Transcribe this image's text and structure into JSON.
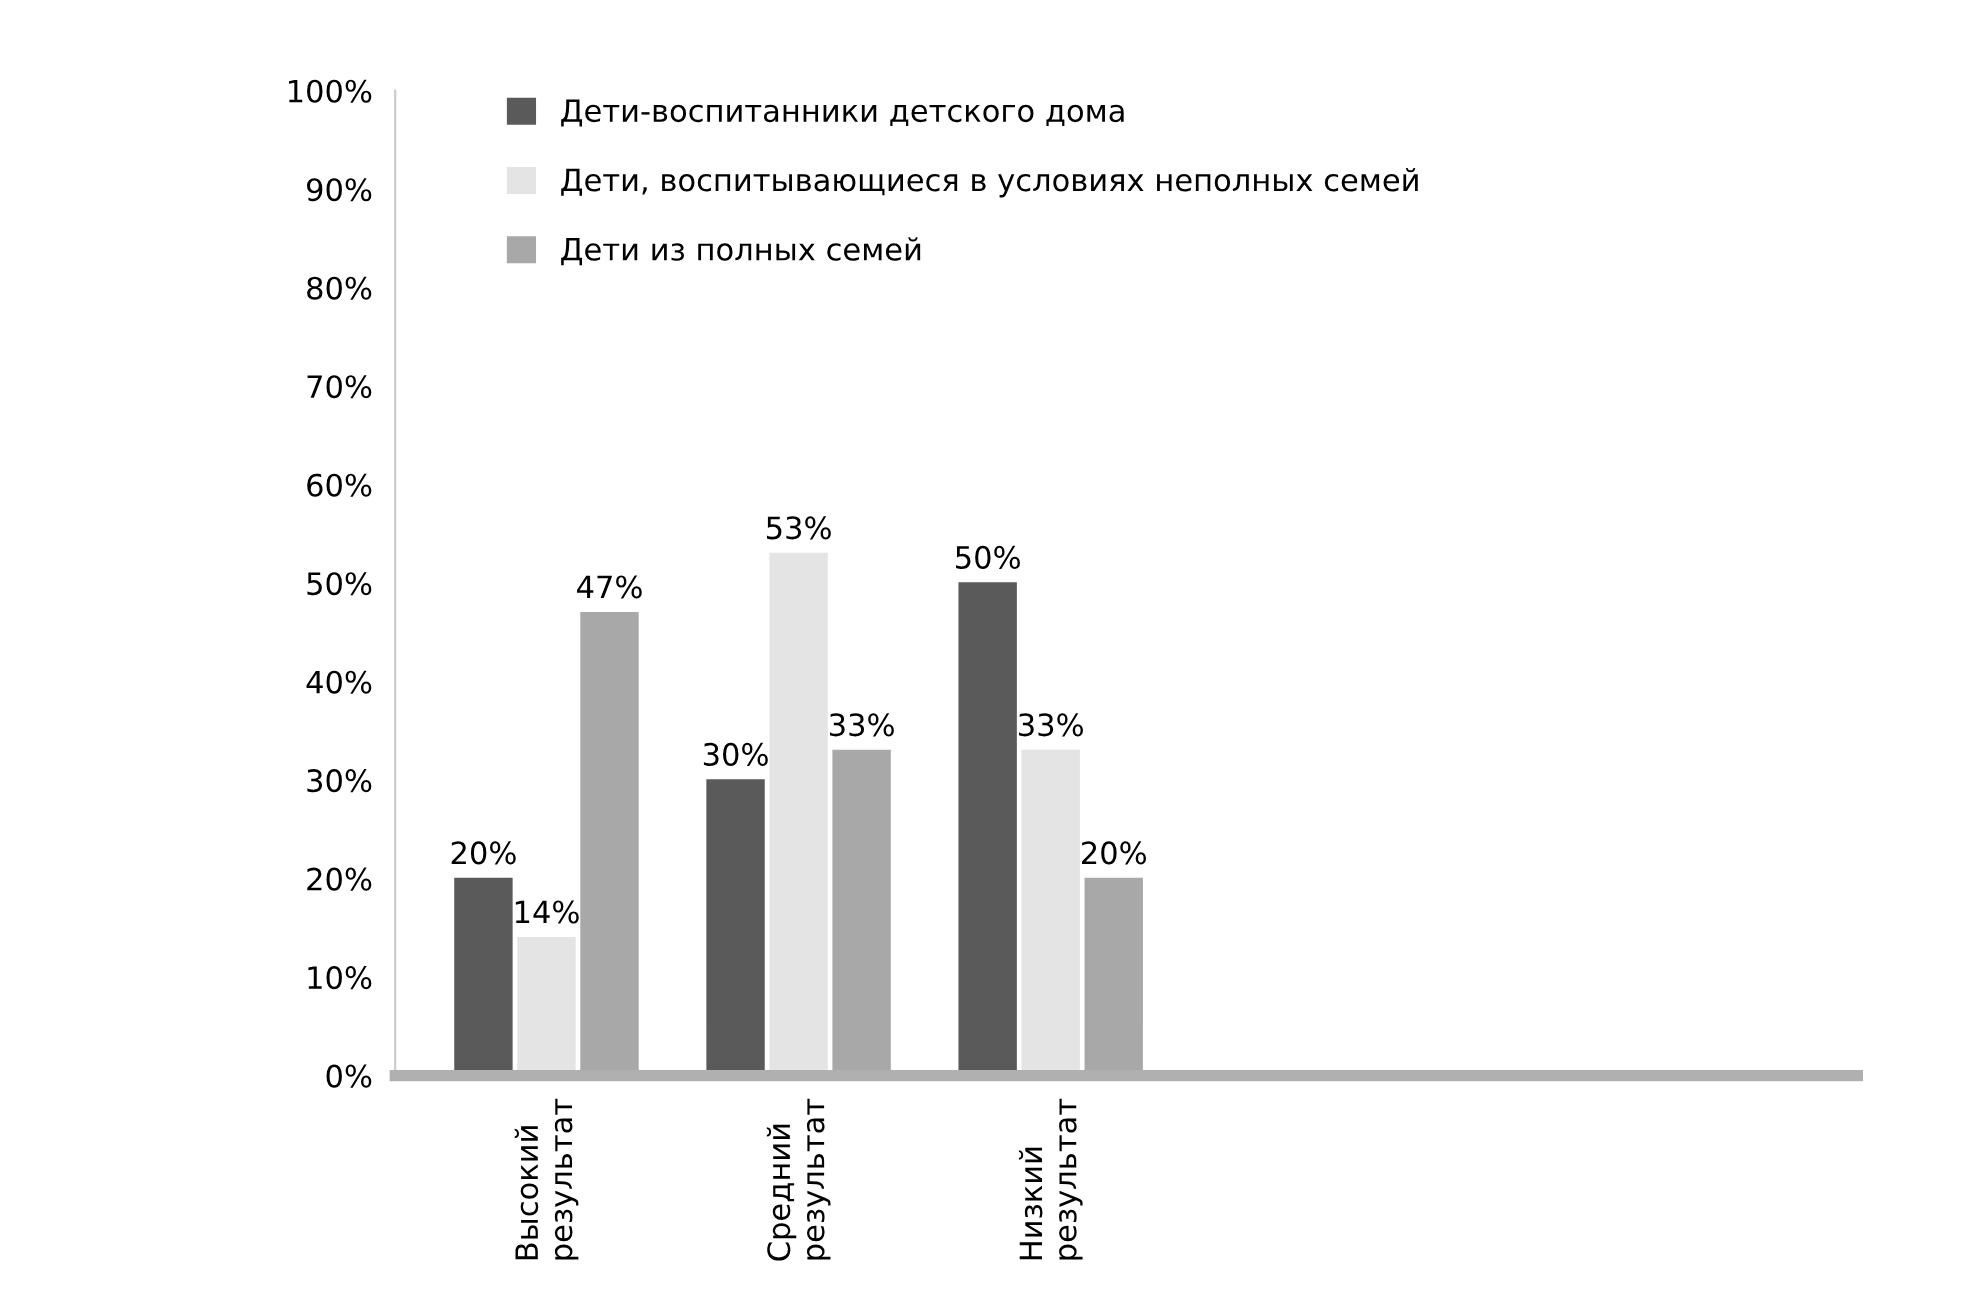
{
  "chart_data": {
    "type": "bar",
    "categories": [
      "Высокий результат",
      "Средний результат",
      "Низкий результат"
    ],
    "series": [
      {
        "name": "Дети-воспитанники детского дома",
        "color": "#5a5a5a",
        "values": [
          20,
          30,
          50
        ],
        "value_labels": [
          "20%",
          "30%",
          "50%"
        ]
      },
      {
        "name": "Дети, воспитывающиеся в условиях неполных семей",
        "color": "#e4e4e4",
        "values": [
          14,
          53,
          33
        ],
        "value_labels": [
          "14%",
          "53%",
          "33%"
        ]
      },
      {
        "name": "Дети из полных семей",
        "color": "#a8a8a8",
        "values": [
          47,
          33,
          20
        ],
        "value_labels": [
          "47%",
          "33%",
          "20%"
        ]
      }
    ],
    "ylim": [
      0,
      100
    ],
    "yticks": [
      {
        "value": 0,
        "label": "0%"
      },
      {
        "value": 10,
        "label": "10%"
      },
      {
        "value": 20,
        "label": "20%"
      },
      {
        "value": 30,
        "label": "30%"
      },
      {
        "value": 40,
        "label": "40%"
      },
      {
        "value": 50,
        "label": "50%"
      },
      {
        "value": 60,
        "label": "60%"
      },
      {
        "value": 70,
        "label": "70%"
      },
      {
        "value": 80,
        "label": "80%"
      },
      {
        "value": 90,
        "label": "90%"
      },
      {
        "value": 100,
        "label": "100%"
      }
    ],
    "grid": false,
    "legend": "top right"
  }
}
